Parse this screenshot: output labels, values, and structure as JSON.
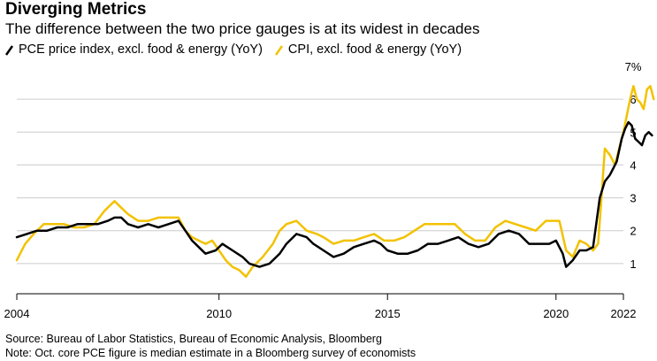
{
  "title": "Diverging Metrics",
  "subtitle": "The difference between the two price gauges is at its widest in decades",
  "source": "Source: Bureau of Labor Statistics, Bureau of Economic Analysis, Bloomberg",
  "note": "Note: Oct. core PCE figure is median estimate in a Bloomberg survey of economists",
  "colors": {
    "pce": "#000000",
    "cpi": "#f2c200",
    "grid": "#cccccc",
    "axis": "#000000"
  },
  "chart_data": {
    "type": "line",
    "title": "Diverging Metrics",
    "subtitle": "The difference between the two price gauges is at its widest in decades",
    "y_unit": "%",
    "ylim": [
      0.0,
      7.0
    ],
    "y_ticks": [
      1,
      2,
      3,
      4,
      5,
      6,
      7
    ],
    "y_tick_labels": [
      "1",
      "2",
      "3",
      "4",
      "5",
      "6",
      "7%"
    ],
    "xlim": [
      2004.0,
      2022.0
    ],
    "x_ticks": [
      2004,
      2010,
      2015,
      2020,
      2022
    ],
    "x_tick_labels": [
      "2004",
      "2010",
      "2015",
      "2020",
      "2022"
    ],
    "grid": true,
    "legend_position": "top-left",
    "series": [
      {
        "name": "PCE price index, excl. food & energy (YoY)",
        "color": "#000000",
        "points": [
          [
            2004.0,
            1.8
          ],
          [
            2004.3,
            1.9
          ],
          [
            2004.6,
            2.0
          ],
          [
            2004.9,
            2.0
          ],
          [
            2005.2,
            2.1
          ],
          [
            2005.5,
            2.1
          ],
          [
            2005.8,
            2.2
          ],
          [
            2006.1,
            2.2
          ],
          [
            2006.4,
            2.2
          ],
          [
            2006.7,
            2.3
          ],
          [
            2006.9,
            2.4
          ],
          [
            2007.1,
            2.4
          ],
          [
            2007.3,
            2.2
          ],
          [
            2007.6,
            2.1
          ],
          [
            2007.9,
            2.2
          ],
          [
            2008.2,
            2.1
          ],
          [
            2008.5,
            2.2
          ],
          [
            2008.8,
            2.3
          ],
          [
            2009.0,
            2.0
          ],
          [
            2009.2,
            1.7
          ],
          [
            2009.4,
            1.5
          ],
          [
            2009.6,
            1.3
          ],
          [
            2009.9,
            1.4
          ],
          [
            2010.1,
            1.6
          ],
          [
            2010.4,
            1.4
          ],
          [
            2010.7,
            1.2
          ],
          [
            2010.9,
            1.0
          ],
          [
            2011.2,
            0.9
          ],
          [
            2011.5,
            1.0
          ],
          [
            2011.8,
            1.3
          ],
          [
            2012.0,
            1.6
          ],
          [
            2012.3,
            1.9
          ],
          [
            2012.6,
            1.8
          ],
          [
            2012.8,
            1.6
          ],
          [
            2013.1,
            1.4
          ],
          [
            2013.4,
            1.2
          ],
          [
            2013.7,
            1.3
          ],
          [
            2014.0,
            1.5
          ],
          [
            2014.3,
            1.6
          ],
          [
            2014.6,
            1.7
          ],
          [
            2014.8,
            1.6
          ],
          [
            2015.0,
            1.4
          ],
          [
            2015.3,
            1.3
          ],
          [
            2015.6,
            1.3
          ],
          [
            2015.9,
            1.4
          ],
          [
            2016.2,
            1.6
          ],
          [
            2016.5,
            1.6
          ],
          [
            2016.8,
            1.7
          ],
          [
            2017.1,
            1.8
          ],
          [
            2017.4,
            1.6
          ],
          [
            2017.7,
            1.5
          ],
          [
            2018.0,
            1.6
          ],
          [
            2018.3,
            1.9
          ],
          [
            2018.6,
            2.0
          ],
          [
            2018.9,
            1.9
          ],
          [
            2019.2,
            1.6
          ],
          [
            2019.5,
            1.6
          ],
          [
            2019.8,
            1.6
          ],
          [
            2020.0,
            1.7
          ],
          [
            2020.2,
            1.3
          ],
          [
            2020.3,
            0.9
          ],
          [
            2020.5,
            1.1
          ],
          [
            2020.7,
            1.4
          ],
          [
            2020.9,
            1.4
          ],
          [
            2021.1,
            1.5
          ],
          [
            2021.3,
            3.0
          ],
          [
            2021.45,
            3.5
          ],
          [
            2021.6,
            3.7
          ],
          [
            2021.8,
            4.1
          ],
          [
            2021.95,
            4.8
          ],
          [
            2022.05,
            5.1
          ],
          [
            2022.15,
            5.3
          ],
          [
            2022.25,
            5.2
          ],
          [
            2022.35,
            4.8
          ],
          [
            2022.45,
            4.7
          ],
          [
            2022.55,
            4.6
          ],
          [
            2022.65,
            4.9
          ],
          [
            2022.75,
            5.0
          ],
          [
            2022.85,
            4.9
          ]
        ]
      },
      {
        "name": "CPI, excl. food & energy (YoY)",
        "color": "#f2c200",
        "points": [
          [
            2004.0,
            1.1
          ],
          [
            2004.25,
            1.6
          ],
          [
            2004.5,
            1.9
          ],
          [
            2004.8,
            2.2
          ],
          [
            2005.1,
            2.2
          ],
          [
            2005.4,
            2.2
          ],
          [
            2005.7,
            2.1
          ],
          [
            2006.0,
            2.1
          ],
          [
            2006.3,
            2.2
          ],
          [
            2006.6,
            2.6
          ],
          [
            2006.9,
            2.9
          ],
          [
            2007.1,
            2.7
          ],
          [
            2007.3,
            2.5
          ],
          [
            2007.6,
            2.3
          ],
          [
            2007.9,
            2.3
          ],
          [
            2008.2,
            2.4
          ],
          [
            2008.5,
            2.4
          ],
          [
            2008.8,
            2.4
          ],
          [
            2009.0,
            2.0
          ],
          [
            2009.2,
            1.8
          ],
          [
            2009.4,
            1.7
          ],
          [
            2009.6,
            1.6
          ],
          [
            2009.8,
            1.7
          ],
          [
            2010.0,
            1.4
          ],
          [
            2010.2,
            1.1
          ],
          [
            2010.4,
            0.9
          ],
          [
            2010.6,
            0.8
          ],
          [
            2010.8,
            0.6
          ],
          [
            2011.0,
            0.9
          ],
          [
            2011.3,
            1.2
          ],
          [
            2011.6,
            1.6
          ],
          [
            2011.8,
            2.0
          ],
          [
            2012.0,
            2.2
          ],
          [
            2012.3,
            2.3
          ],
          [
            2012.6,
            2.0
          ],
          [
            2012.9,
            1.9
          ],
          [
            2013.1,
            1.8
          ],
          [
            2013.4,
            1.6
          ],
          [
            2013.7,
            1.7
          ],
          [
            2014.0,
            1.7
          ],
          [
            2014.3,
            1.8
          ],
          [
            2014.6,
            1.9
          ],
          [
            2014.9,
            1.7
          ],
          [
            2015.2,
            1.7
          ],
          [
            2015.5,
            1.8
          ],
          [
            2015.8,
            2.0
          ],
          [
            2016.1,
            2.2
          ],
          [
            2016.4,
            2.2
          ],
          [
            2016.7,
            2.2
          ],
          [
            2017.0,
            2.2
          ],
          [
            2017.3,
            1.9
          ],
          [
            2017.6,
            1.7
          ],
          [
            2017.9,
            1.7
          ],
          [
            2018.2,
            2.1
          ],
          [
            2018.5,
            2.3
          ],
          [
            2018.8,
            2.2
          ],
          [
            2019.1,
            2.1
          ],
          [
            2019.4,
            2.0
          ],
          [
            2019.7,
            2.3
          ],
          [
            2019.9,
            2.3
          ],
          [
            2020.1,
            2.3
          ],
          [
            2020.3,
            1.4
          ],
          [
            2020.5,
            1.2
          ],
          [
            2020.7,
            1.7
          ],
          [
            2020.9,
            1.6
          ],
          [
            2021.1,
            1.4
          ],
          [
            2021.25,
            1.6
          ],
          [
            2021.35,
            3.0
          ],
          [
            2021.45,
            4.5
          ],
          [
            2021.6,
            4.3
          ],
          [
            2021.75,
            4.0
          ],
          [
            2021.9,
            4.6
          ],
          [
            2022.0,
            5.0
          ],
          [
            2022.1,
            5.5
          ],
          [
            2022.2,
            6.0
          ],
          [
            2022.3,
            6.4
          ],
          [
            2022.4,
            6.0
          ],
          [
            2022.5,
            5.9
          ],
          [
            2022.6,
            5.7
          ],
          [
            2022.7,
            6.3
          ],
          [
            2022.8,
            6.4
          ],
          [
            2022.9,
            6.0
          ]
        ]
      }
    ]
  }
}
